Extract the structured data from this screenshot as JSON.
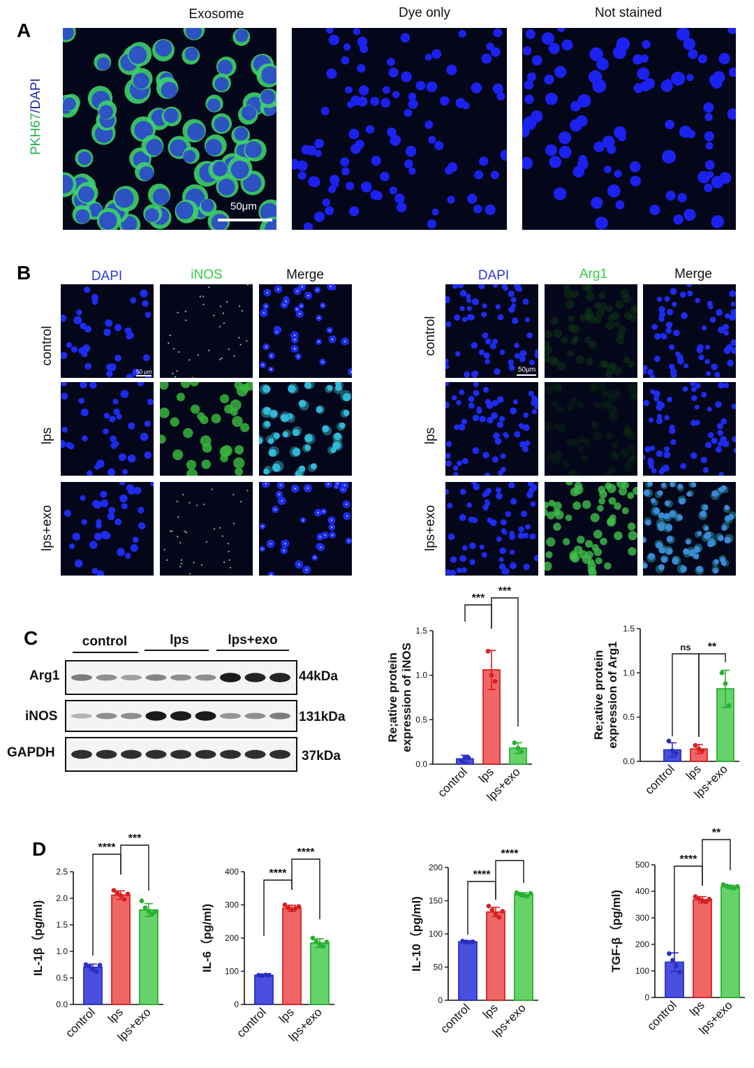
{
  "panels": {
    "A": {
      "label": "A",
      "columns": [
        "Exosome",
        "Dye only",
        "Not stained"
      ],
      "side_label_green": "PKH67",
      "side_label_blue": "/DAPI",
      "scale": "50μm"
    },
    "B": {
      "label": "B",
      "left_columns": [
        "DAPI",
        "iNOS",
        "Merge"
      ],
      "right_columns": [
        "DAPI",
        "Arg1",
        "Merge"
      ],
      "rows": [
        "control",
        "lps",
        "lps+exo"
      ],
      "scale_left": "50 μm",
      "scale_right": "50μm"
    },
    "C": {
      "label": "C",
      "groups": [
        "control",
        "lps",
        "lps+exo"
      ],
      "blots": [
        {
          "name": "Arg1",
          "kda": "44kDa"
        },
        {
          "name": "iNOS",
          "kda": "131kDa"
        },
        {
          "name": "GAPDH",
          "kda": "37kDa"
        }
      ]
    },
    "D": {
      "label": "D"
    }
  },
  "colors": {
    "control": "#4a4fe0",
    "lps": "#f06666",
    "lpsexo": "#66d36a",
    "control_edge": "#2a2fc0",
    "lps_edge": "#d82020",
    "lpsexo_edge": "#28b030"
  },
  "chart_data": [
    {
      "id": "inos",
      "type": "bar",
      "categories": [
        "control",
        "lps",
        "lps+exo"
      ],
      "values": [
        0.06,
        1.06,
        0.18
      ],
      "errors": [
        0.04,
        0.22,
        0.06
      ],
      "points": [
        [
          0.04,
          0.08,
          0.07
        ],
        [
          1.27,
          1.0,
          0.93
        ],
        [
          0.24,
          0.18,
          0.14
        ]
      ],
      "ylabel_1": "Re;ative protein",
      "ylabel_2": "expression of iNOS",
      "ylim": [
        0,
        1.5
      ],
      "yticks": [
        "0.0",
        "0.5",
        "1.0",
        "1.5"
      ],
      "sig": [
        {
          "from": 0,
          "to": 1,
          "text": "***"
        },
        {
          "from": 1,
          "to": 2,
          "text": "***"
        }
      ]
    },
    {
      "id": "arg1",
      "type": "bar",
      "categories": [
        "control",
        "lps",
        "lps+exo"
      ],
      "values": [
        0.13,
        0.14,
        0.82
      ],
      "errors": [
        0.08,
        0.05,
        0.21
      ],
      "points": [
        [
          0.23,
          0.12,
          0.09
        ],
        [
          0.18,
          0.14,
          0.12
        ],
        [
          1.0,
          0.88,
          0.63
        ]
      ],
      "ylabel_1": "Re;ative protein",
      "ylabel_2": "expression of Arg1",
      "ylim": [
        0,
        1.5
      ],
      "yticks": [
        "0.0",
        "0.5",
        "1.0",
        "1.5"
      ],
      "sig": [
        {
          "from": 0,
          "to": 1,
          "text": "ns"
        },
        {
          "from": 1,
          "to": 2,
          "text": "**"
        }
      ]
    },
    {
      "id": "il1b",
      "type": "bar",
      "categories": [
        "control",
        "lps",
        "lps+exo"
      ],
      "values": [
        0.7,
        2.06,
        1.78
      ],
      "errors": [
        0.06,
        0.08,
        0.12
      ],
      "points": [
        [
          0.75,
          0.72,
          0.66,
          0.62,
          0.74
        ],
        [
          2.15,
          2.1,
          2.05,
          1.98,
          2.08
        ],
        [
          1.95,
          1.82,
          1.76,
          1.7,
          1.75
        ]
      ],
      "ylabel_1": "IL-1β（pg/ml)",
      "ylim": [
        0,
        2.5
      ],
      "yticks": [
        "0.0",
        "0.5",
        "1.0",
        "1.5",
        "2.0",
        "2.5"
      ],
      "sig": [
        {
          "from": 0,
          "to": 1,
          "text": "****"
        },
        {
          "from": 1,
          "to": 2,
          "text": "***"
        }
      ]
    },
    {
      "id": "il6",
      "type": "bar",
      "categories": [
        "control",
        "lps",
        "lps+exo"
      ],
      "values": [
        88,
        290,
        185
      ],
      "errors": [
        3,
        9,
        13
      ],
      "points": [
        [
          88,
          87,
          89,
          88
        ],
        [
          300,
          292,
          285,
          290,
          295
        ],
        [
          200,
          190,
          182,
          175,
          188
        ]
      ],
      "ylabel_1": "IL-6（pg/ml)",
      "ylim": [
        0,
        400
      ],
      "yticks": [
        "0",
        "100",
        "200",
        "300",
        "400"
      ],
      "sig": [
        {
          "from": 0,
          "to": 1,
          "text": "****"
        },
        {
          "from": 1,
          "to": 2,
          "text": "****"
        }
      ]
    },
    {
      "id": "il10",
      "type": "bar",
      "categories": [
        "control",
        "lps",
        "lps+exo"
      ],
      "values": [
        88,
        133,
        159
      ],
      "errors": [
        2,
        7,
        3
      ],
      "points": [
        [
          89,
          88,
          87,
          88
        ],
        [
          142,
          136,
          130,
          125,
          134
        ],
        [
          162,
          160,
          158,
          157,
          161
        ]
      ],
      "ylabel_1": "IL-10（pg/ml)",
      "ylim": [
        0,
        200
      ],
      "yticks": [
        "0",
        "50",
        "100",
        "150",
        "200"
      ],
      "sig": [
        {
          "from": 0,
          "to": 1,
          "text": "****"
        },
        {
          "from": 1,
          "to": 2,
          "text": "****"
        }
      ]
    },
    {
      "id": "tgfb",
      "type": "bar",
      "categories": [
        "control",
        "lps",
        "lps+exo"
      ],
      "values": [
        133,
        368,
        417
      ],
      "errors": [
        35,
        12,
        6
      ],
      "points": [
        [
          165,
          140,
          120,
          95
        ],
        [
          380,
          372,
          365,
          360,
          370
        ],
        [
          425,
          420,
          415,
          412,
          418
        ]
      ],
      "ylabel_1": "TGF-β（pg/ml)",
      "ylim": [
        0,
        500
      ],
      "yticks": [
        "0",
        "100",
        "200",
        "300",
        "400",
        "500"
      ],
      "sig": [
        {
          "from": 0,
          "to": 1,
          "text": "****"
        },
        {
          "from": 1,
          "to": 2,
          "text": "**"
        }
      ]
    }
  ]
}
